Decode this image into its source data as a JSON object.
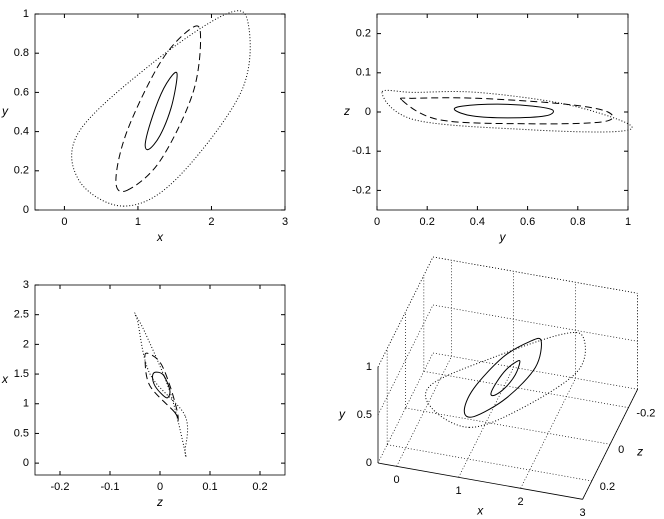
{
  "chart_data": [
    {
      "type": "line",
      "xlabel": "x",
      "ylabel": "y",
      "xlim": [
        -0.4,
        3
      ],
      "ylim": [
        0,
        1
      ],
      "xticks": [
        0,
        1,
        2,
        3
      ],
      "yticks": [
        0,
        0.2,
        0.4,
        0.6,
        0.8,
        1
      ],
      "series": [
        {
          "style": "solid",
          "color": "#000000",
          "x": [
            1.15,
            1.3,
            1.45,
            1.53,
            1.5,
            1.35,
            1.2,
            1.1
          ],
          "values": [
            0.31,
            0.38,
            0.52,
            0.67,
            0.7,
            0.62,
            0.48,
            0.34
          ]
        },
        {
          "style": "dashed",
          "color": "#000000",
          "x": [
            0.85,
            1.3,
            1.75,
            1.85,
            1.7,
            1.3,
            0.85,
            0.7
          ],
          "values": [
            0.1,
            0.25,
            0.6,
            0.9,
            0.92,
            0.75,
            0.4,
            0.15
          ]
        },
        {
          "style": "dotted",
          "color": "#000000",
          "x": [
            0.8,
            1.5,
            2.4,
            2.5,
            2.2,
            1.2,
            0.2,
            0.2
          ],
          "values": [
            0.02,
            0.15,
            0.6,
            0.95,
            1.0,
            0.75,
            0.4,
            0.15
          ]
        }
      ]
    },
    {
      "type": "line",
      "xlabel": "y",
      "ylabel": "z",
      "xlim": [
        0,
        1
      ],
      "ylim": [
        -0.25,
        0.25
      ],
      "xticks": [
        0,
        0.2,
        0.4,
        0.6,
        0.8,
        1
      ],
      "yticks": [
        -0.2,
        -0.1,
        0,
        0.1,
        0.2
      ],
      "series": [
        {
          "style": "solid",
          "color": "#000000",
          "x": [
            0.31,
            0.38,
            0.52,
            0.67,
            0.7,
            0.62,
            0.48,
            0.34
          ],
          "values": [
            0.005,
            -0.01,
            -0.015,
            -0.01,
            0.005,
            0.015,
            0.02,
            0.015
          ]
        },
        {
          "style": "dashed",
          "color": "#000000",
          "x": [
            0.1,
            0.25,
            0.6,
            0.9,
            0.92,
            0.75,
            0.4,
            0.15
          ],
          "values": [
            0.03,
            -0.02,
            -0.03,
            -0.025,
            0.0,
            0.02,
            0.035,
            0.035
          ]
        },
        {
          "style": "dotted",
          "color": "#000000",
          "x": [
            0.02,
            0.15,
            0.6,
            0.95,
            1.0,
            0.75,
            0.4,
            0.15
          ],
          "values": [
            0.05,
            -0.02,
            -0.045,
            -0.05,
            -0.03,
            0.02,
            0.05,
            0.05
          ]
        }
      ]
    },
    {
      "type": "line",
      "xlabel": "z",
      "ylabel": "x",
      "xlim": [
        -0.25,
        0.25
      ],
      "ylim": [
        -0.2,
        3
      ],
      "xticks": [
        -0.2,
        -0.1,
        0,
        0.1,
        0.2
      ],
      "yticks": [
        0,
        0.5,
        1,
        1.5,
        2,
        2.5,
        3
      ],
      "series": [
        {
          "style": "solid",
          "color": "#000000",
          "x": [
            0.005,
            -0.01,
            -0.015,
            -0.01,
            0.005,
            0.015,
            0.02,
            0.015
          ],
          "values": [
            1.15,
            1.3,
            1.45,
            1.53,
            1.5,
            1.35,
            1.2,
            1.1
          ]
        },
        {
          "style": "dashed",
          "color": "#000000",
          "x": [
            0.03,
            -0.02,
            -0.03,
            -0.025,
            0.0,
            0.02,
            0.035,
            0.035
          ],
          "values": [
            0.85,
            1.3,
            1.75,
            1.85,
            1.7,
            1.3,
            0.85,
            0.7
          ]
        },
        {
          "style": "dotted",
          "color": "#000000",
          "x": [
            0.05,
            -0.02,
            -0.045,
            -0.05,
            -0.03,
            0.02,
            0.05,
            0.05
          ],
          "values": [
            0.8,
            1.5,
            2.4,
            2.5,
            2.2,
            1.2,
            0.2,
            0.2
          ]
        }
      ]
    },
    {
      "type": "line3d",
      "xlabel": "x",
      "ylabel": "y",
      "zlabel": "z",
      "xlim": [
        -0.3,
        3
      ],
      "ylim": [
        0,
        1
      ],
      "zlim": [
        -0.3,
        0.3
      ],
      "xticks": [
        0,
        1,
        2,
        3
      ],
      "yticks": [
        0,
        0.5,
        1
      ],
      "zticks": [
        -0.2,
        0,
        0.2
      ],
      "grid": true,
      "series": [
        {
          "style": "solid",
          "color": "#000000",
          "x": [
            1.15,
            1.3,
            1.45,
            1.53,
            1.5,
            1.35,
            1.2,
            1.1
          ],
          "values": [
            0.31,
            0.38,
            0.52,
            0.67,
            0.7,
            0.62,
            0.48,
            0.34
          ],
          "z": [
            0.005,
            -0.01,
            -0.015,
            -0.01,
            0.005,
            0.015,
            0.02,
            0.015
          ]
        },
        {
          "style": "solid",
          "color": "#000000",
          "x": [
            0.85,
            1.3,
            1.75,
            1.85,
            1.7,
            1.3,
            0.85,
            0.7
          ],
          "values": [
            0.1,
            0.25,
            0.6,
            0.9,
            0.92,
            0.75,
            0.4,
            0.15
          ],
          "z": [
            0.03,
            -0.02,
            -0.03,
            -0.025,
            0.0,
            0.02,
            0.035,
            0.035
          ]
        },
        {
          "style": "dotted",
          "color": "#000000",
          "x": [
            0.8,
            1.5,
            2.4,
            2.5,
            2.2,
            1.2,
            0.2,
            0.2
          ],
          "values": [
            0.02,
            0.15,
            0.6,
            0.95,
            1.0,
            0.75,
            0.4,
            0.15
          ],
          "z": [
            0.05,
            -0.02,
            -0.045,
            -0.05,
            -0.03,
            0.02,
            0.05,
            0.05
          ]
        }
      ]
    }
  ]
}
